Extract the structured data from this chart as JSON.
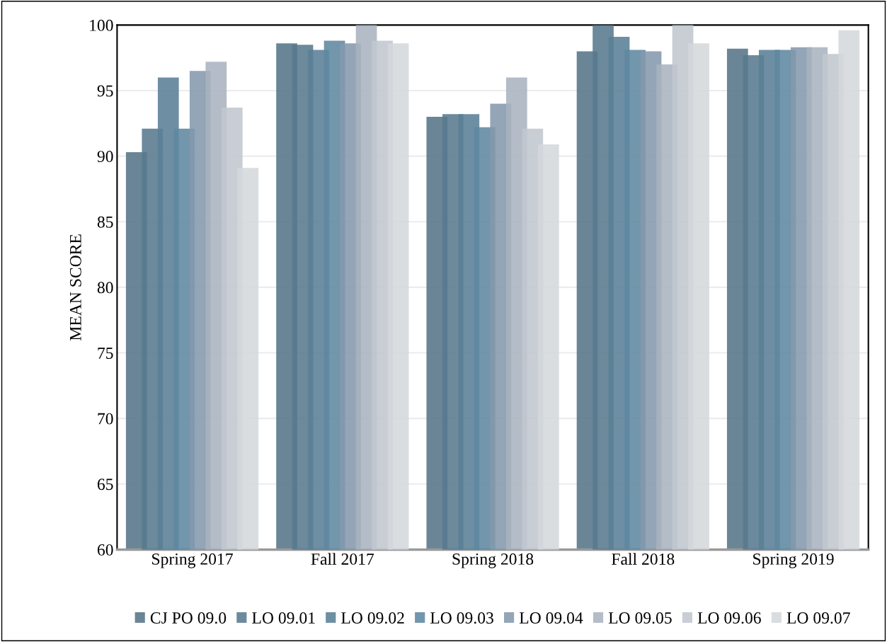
{
  "chart_data": {
    "type": "bar",
    "ylabel": "MEAN SCORE",
    "categories": [
      "Spring 2017",
      "Fall 2017",
      "Spring 2018",
      "Fall 2018",
      "Spring 2019"
    ],
    "series": [
      {
        "name": "CJ PO 09.0",
        "color": "#557587",
        "values": [
          90.3,
          98.6,
          93.0,
          98.0,
          98.2
        ]
      },
      {
        "name": "LO 09.01",
        "color": "#587a8e",
        "values": [
          92.1,
          98.5,
          93.2,
          100,
          97.7
        ]
      },
      {
        "name": "LO 09.02",
        "color": "#5a8096",
        "values": [
          96.0,
          98.1,
          93.2,
          99.1,
          98.1
        ]
      },
      {
        "name": "LO 09.03",
        "color": "#5e87a0",
        "values": [
          92.1,
          98.8,
          92.2,
          98.1,
          98.1
        ]
      },
      {
        "name": "LO 09.04",
        "color": "#8499ad",
        "values": [
          96.5,
          98.6,
          94.0,
          98.0,
          98.3
        ]
      },
      {
        "name": "LO 09.05",
        "color": "#a9b3bf",
        "values": [
          97.2,
          100,
          96.0,
          97.0,
          98.3
        ]
      },
      {
        "name": "LO 09.06",
        "color": "#c1c7cf",
        "values": [
          93.7,
          98.8,
          92.1,
          100,
          97.8
        ]
      },
      {
        "name": "LO 09.07",
        "color": "#d4d8dc",
        "values": [
          89.1,
          98.6,
          90.9,
          98.6,
          99.6
        ]
      }
    ],
    "ylim": [
      60,
      100
    ],
    "yticks": [
      60,
      65,
      70,
      75,
      80,
      85,
      90,
      95,
      100
    ],
    "grid": "y",
    "legend": "bottom"
  }
}
